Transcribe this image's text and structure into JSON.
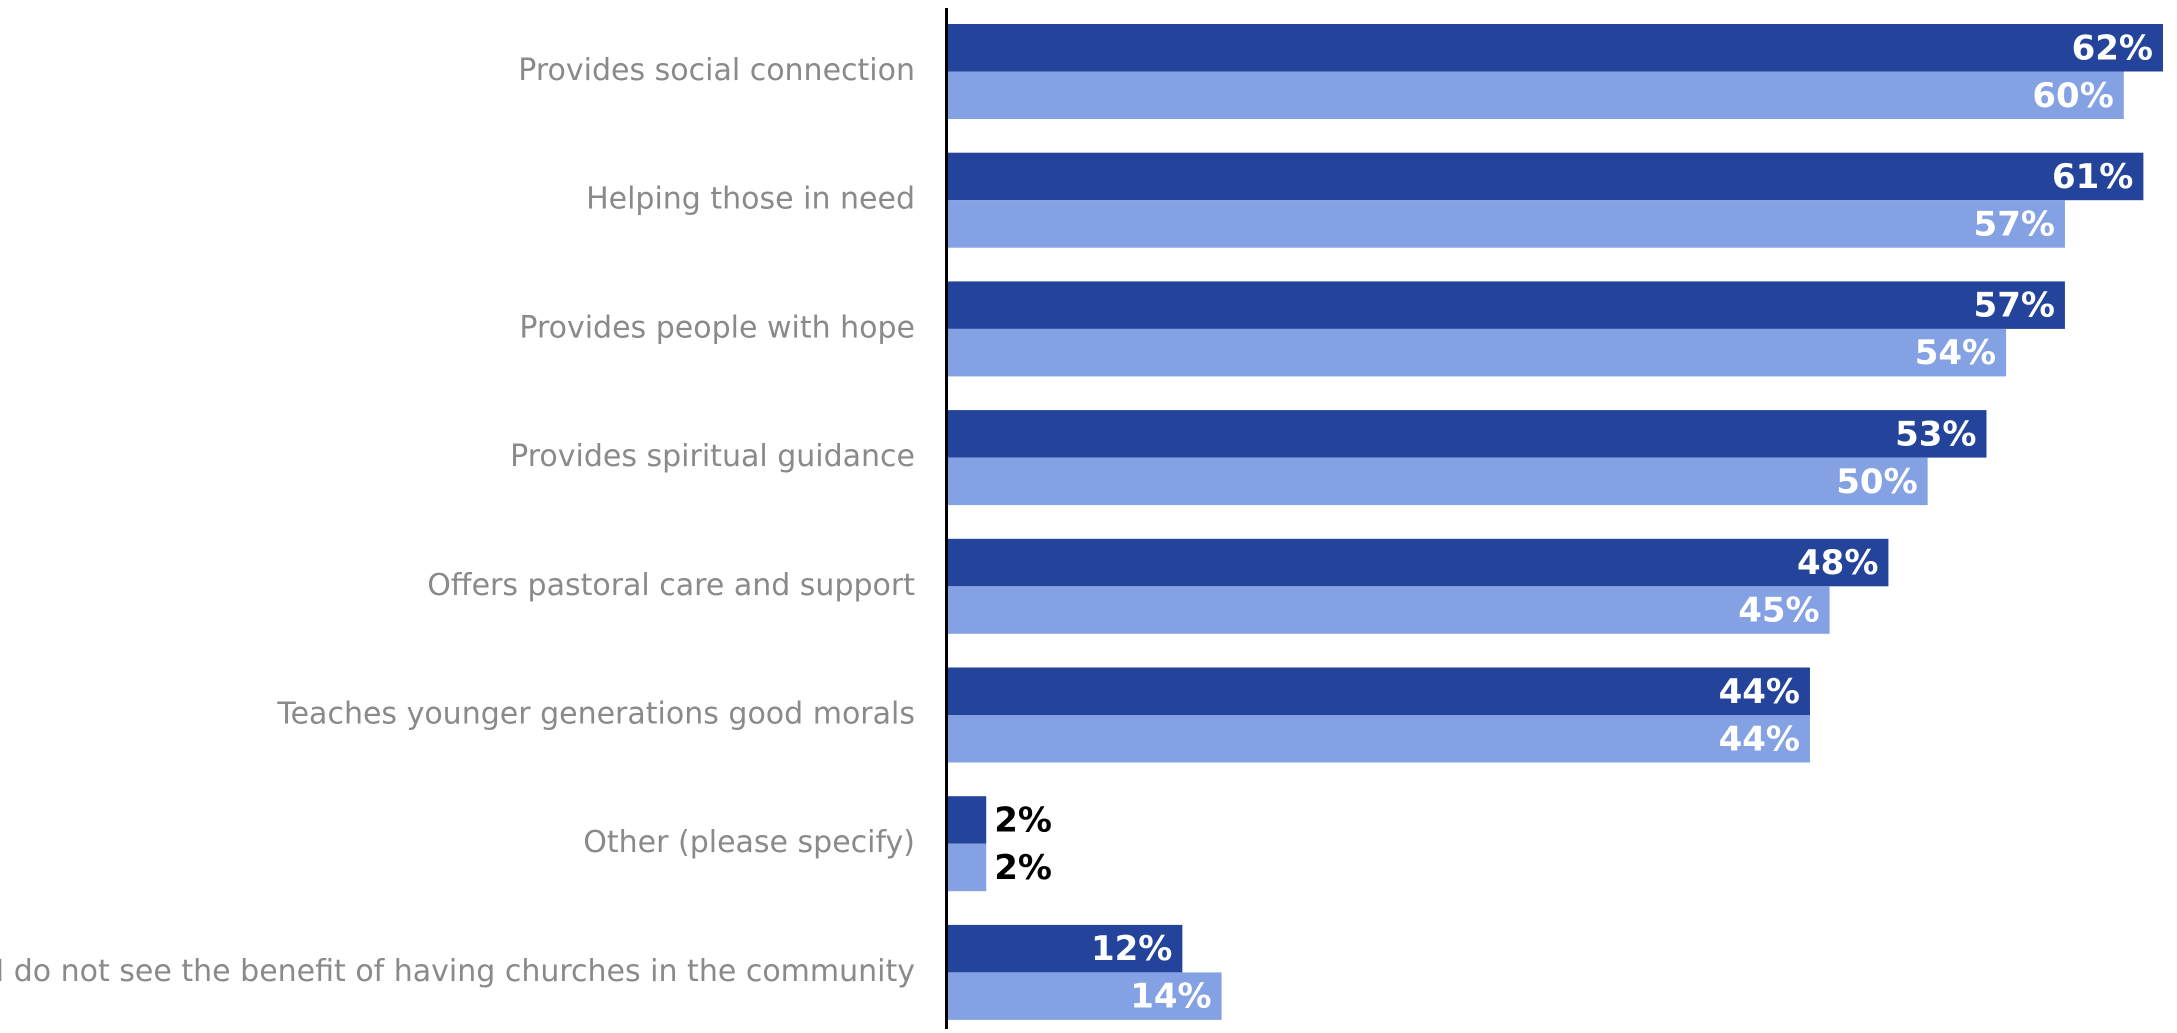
{
  "chart_data": {
    "type": "bar",
    "orientation": "horizontal",
    "categories": [
      "Provides social connection",
      "Helping those in need",
      "Provides people with hope",
      "Provides spiritual guidance",
      "Offers pastoral care and support",
      "Teaches younger generations good morals",
      "Other (please specify)",
      "I do not see the benefit of having churches in the community"
    ],
    "series": [
      {
        "values": [
          62,
          61,
          57,
          53,
          48,
          44,
          2,
          12
        ],
        "color": "#23449a"
      },
      {
        "values": [
          60,
          57,
          54,
          50,
          45,
          44,
          2,
          14
        ],
        "color": "#84a1e4"
      }
    ],
    "value_suffix": "%",
    "xlim": [
      0,
      62
    ],
    "grid": false,
    "legend": "none"
  },
  "colors": {
    "category_label": "#8a8a8a",
    "label_inside": "#ffffff",
    "label_outside": "#000000",
    "axis": "#000000"
  }
}
